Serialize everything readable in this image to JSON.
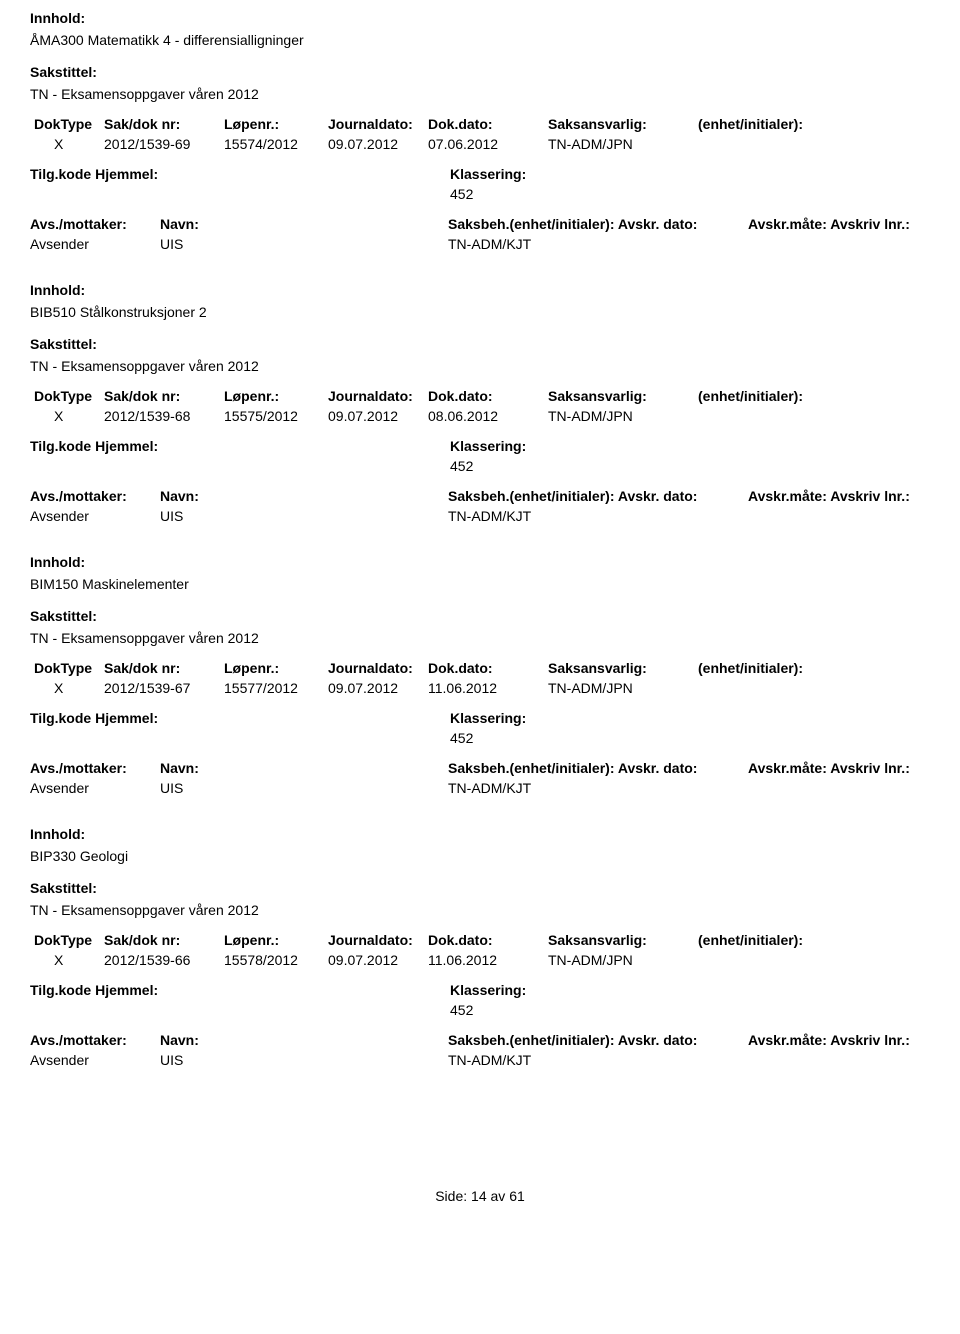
{
  "labels": {
    "innhold": "Innhold:",
    "sakstittel": "Sakstittel:",
    "doktype": "DokType",
    "sakdok": "Sak/dok nr:",
    "lopenr": "Løpenr.:",
    "journaldato": "Journaldato:",
    "dokdato": "Dok.dato:",
    "saksansvarlig": "Saksansvarlig:",
    "enhet_initialer": "(enhet/initialer):",
    "tilgkode": "Tilg.kode",
    "hjemmel": "Hjemmel:",
    "klassering": "Klassering:",
    "avs_mottaker": "Avs./mottaker:",
    "navn": "Navn:",
    "saksbeh": "Saksbeh.(enhet/initialer):",
    "avskr_dato": "Avskr. dato:",
    "avskr_mate": "Avskr.måte:",
    "avskriv_lnr": "Avskriv lnr.:",
    "avsender": "Avsender"
  },
  "common": {
    "sakstittel_text": "TN - Eksamensoppgaver våren 2012",
    "saksansvarlig": "TN-ADM/JPN",
    "journaldato": "09.07.2012",
    "klassering_value": "452",
    "avsender_name": "UIS",
    "saksbeh_value": "TN-ADM/KJT"
  },
  "entries": [
    {
      "innhold": "ÅMA300 Matematikk 4 - differensialligninger",
      "doktype": "X",
      "sakdok": "2012/1539-69",
      "lopenr": "15574/2012",
      "dokdato": "07.06.2012"
    },
    {
      "innhold": "BIB510 Stålkonstruksjoner 2",
      "doktype": "X",
      "sakdok": "2012/1539-68",
      "lopenr": "15575/2012",
      "dokdato": "08.06.2012"
    },
    {
      "innhold": "BIM150 Maskinelementer",
      "doktype": "X",
      "sakdok": "2012/1539-67",
      "lopenr": "15577/2012",
      "dokdato": "11.06.2012"
    },
    {
      "innhold": "BIP330 Geologi",
      "doktype": "X",
      "sakdok": "2012/1539-66",
      "lopenr": "15578/2012",
      "dokdato": "11.06.2012"
    }
  ],
  "footer": {
    "side": "Side:",
    "page": "14",
    "av": "av",
    "total": "61"
  }
}
